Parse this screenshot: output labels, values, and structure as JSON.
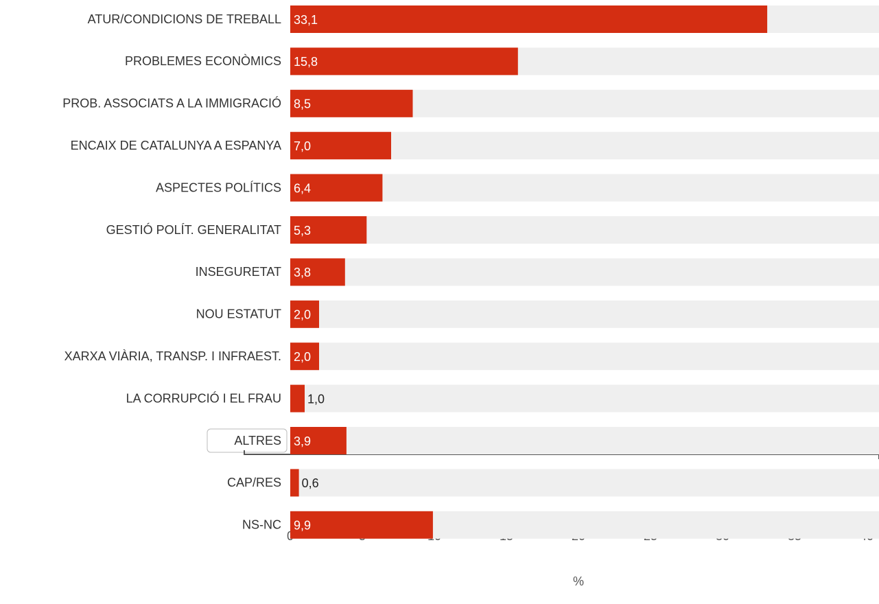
{
  "chart_data": {
    "type": "barh",
    "categories": [
      "ATUR/CONDICIONS DE TREBALL",
      "PROBLEMES ECONÒMICS",
      "PROB. ASSOCIATS A LA IMMIGRACIÓ",
      "ENCAIX DE CATALUNYA A ESPANYA",
      "ASPECTES POLÍTICS",
      "GESTIÓ POLÍT. GENERALITAT",
      "INSEGURETAT",
      "NOU ESTATUT",
      "XARXA VIÀRIA, TRANSP. I INFRAEST.",
      "LA CORRUPCIÓ I EL FRAU",
      "ALTRES",
      "CAP/RES",
      "NS-NC"
    ],
    "values": [
      33.1,
      15.8,
      8.5,
      7.0,
      6.4,
      5.3,
      3.8,
      2.0,
      2.0,
      1.0,
      3.9,
      0.6,
      9.9
    ],
    "value_labels": [
      "33,1",
      "15,8",
      "8,5",
      "7,0",
      "6,4",
      "5,3",
      "3,8",
      "2,0",
      "2,0",
      "1,0",
      "3,9",
      "0,6",
      "9,9"
    ],
    "color": "#d42e12",
    "xlabel": "%",
    "xlim": [
      0,
      40
    ],
    "xticks": [
      0,
      5,
      10,
      15,
      20,
      25,
      30,
      35,
      40
    ]
  }
}
